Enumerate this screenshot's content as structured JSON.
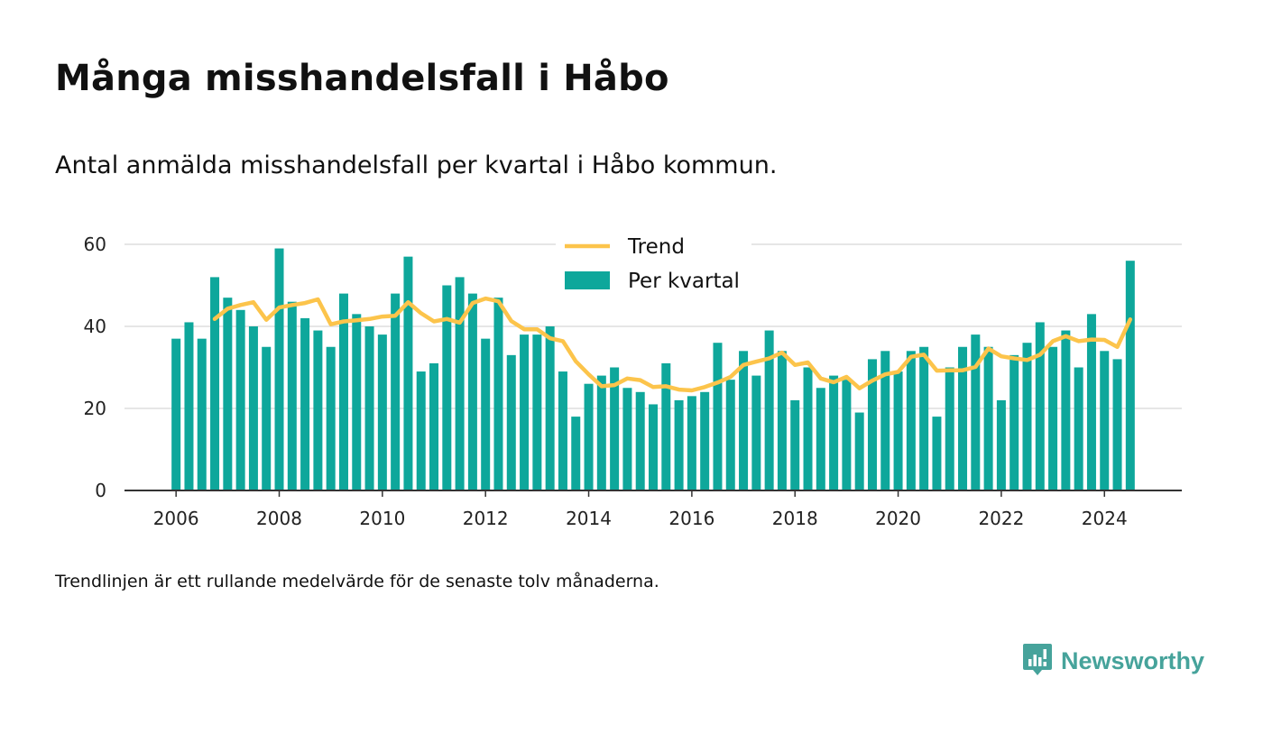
{
  "header": {
    "title": "Många misshandelsfall i Håbo",
    "subtitle": "Antal anmälda misshandelsfall per kvartal i Håbo kommun."
  },
  "footer": {
    "note": "Trendlinjen är ett rullande medelvärde för de senaste tolv månaderna.",
    "brand": "Newsworthy"
  },
  "colors": {
    "bar": "#0ea79b",
    "trend": "#fcc44b",
    "grid": "#dddddd",
    "axis": "#333333",
    "brand": "#46a39b"
  },
  "icons": {
    "brand_logo": "newsworthy-logo-icon"
  },
  "chart_data": {
    "type": "bar",
    "x_start": 2006,
    "x_step": 0.25,
    "xlim": [
      2005.0,
      2025.5
    ],
    "ylim": [
      0,
      60
    ],
    "y_ticks": [
      0,
      20,
      40,
      60
    ],
    "x_ticks": [
      2006,
      2008,
      2010,
      2012,
      2014,
      2016,
      2018,
      2020,
      2022,
      2024
    ],
    "grid": true,
    "legend_position": "top-center",
    "series": [
      {
        "name": "Per kvartal",
        "type": "bar",
        "values": [
          37,
          41,
          37,
          52,
          47,
          44,
          40,
          35,
          59,
          46,
          42,
          39,
          35,
          48,
          43,
          40,
          38,
          48,
          57,
          29,
          31,
          50,
          52,
          48,
          37,
          47,
          33,
          38,
          38,
          40,
          29,
          18,
          26,
          28,
          30,
          25,
          24,
          21,
          31,
          22,
          23,
          24,
          36,
          27,
          34,
          28,
          39,
          34,
          22,
          30,
          25,
          28,
          27,
          19,
          32,
          34,
          29,
          34,
          35,
          18,
          30,
          35,
          38,
          35,
          22,
          33,
          36,
          41,
          35,
          39,
          30,
          43,
          34,
          32,
          56
        ]
      },
      {
        "name": "Trend",
        "type": "line",
        "start_index": 3,
        "values": [
          41.8,
          44.3,
          45.2,
          45.9,
          41.6,
          44.6,
          45.2,
          45.7,
          46.6,
          40.5,
          41.2,
          41.5,
          41.8,
          42.4,
          42.6,
          45.9,
          43.2,
          41.2,
          41.8,
          40.9,
          45.7,
          46.8,
          46.1,
          41.3,
          39.3,
          39.3,
          37.1,
          36.4,
          31.5,
          28.3,
          25.4,
          25.7,
          27.3,
          26.9,
          25.2,
          25.4,
          24.6,
          24.4,
          25.2,
          26.3,
          27.7,
          30.6,
          31.4,
          32.2,
          33.6,
          30.6,
          31.2,
          27.3,
          26.4,
          27.7,
          24.9,
          26.8,
          28.3,
          28.9,
          32.6,
          33.1,
          29.2,
          29.3,
          29.3,
          30.1,
          34.6,
          32.7,
          32.2,
          31.8,
          33.1,
          36.4,
          37.6,
          36.4,
          36.8,
          36.7,
          35.0,
          41.7
        ]
      }
    ]
  }
}
